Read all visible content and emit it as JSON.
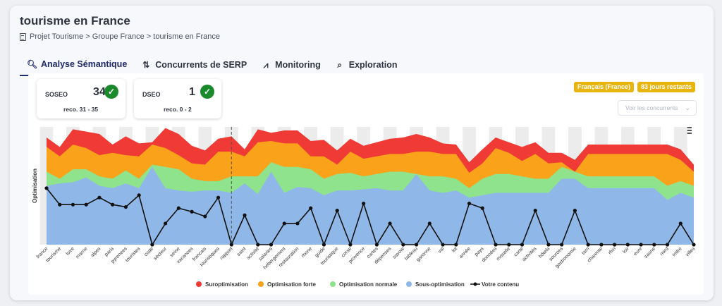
{
  "page": {
    "title": "tourisme en France"
  },
  "breadcrumb": {
    "text": "Projet Tourisme  >  Groupe France  >  tourisme en France"
  },
  "tabs": [
    {
      "label": "Analyse Sémantique",
      "icon": "search-chart-icon"
    },
    {
      "label": "Concurrents de SERP",
      "icon": "compare-icon"
    },
    {
      "label": "Monitoring",
      "icon": "pulse-icon"
    },
    {
      "label": "Exploration",
      "icon": "search-icon"
    }
  ],
  "scores": [
    {
      "label": "SOSEO",
      "value": "34",
      "reco": "reco. 31 - 35"
    },
    {
      "label": "DSEO",
      "value": "1",
      "reco": "reco. 0 - 2"
    }
  ],
  "badges": {
    "language": "Français (France)",
    "days": "83 jours restants"
  },
  "competitors_button": "Voir les concurrents",
  "colors": {
    "suroptimisation": "#ef3a36",
    "forte": "#f9a21a",
    "normale": "#8fe38c",
    "sous": "#8fb8e8",
    "contenu": "#111111",
    "check": "#1b8a2c",
    "badge": "#e8b40e"
  },
  "chart_data": {
    "type": "area",
    "ylabel": "Optimisation",
    "ylim": [
      0,
      100
    ],
    "grid": "alternating vertical bands",
    "legend_position": "bottom",
    "marker_after_index": 13,
    "categories": [
      "france",
      "tourisme",
      "loire",
      "marne",
      "alpes",
      "paris",
      "pyrenees",
      "touristes",
      "code",
      "secteur",
      "seine",
      "vacances",
      "francais",
      "touristiques",
      "rapport",
      "saint",
      "activité",
      "salaries",
      "hebergement",
      "restauration",
      "rhone",
      "guide",
      "touristique",
      "corse",
      "provence",
      "cartes",
      "dépenses",
      "savoie",
      "tableau",
      "garonne",
      "val",
      "lot",
      "année",
      "pays",
      "données",
      "moselle",
      "carte",
      "activités",
      "hôtels",
      "sources",
      "gastronomie",
      "tarn",
      "charente",
      "rhin",
      "loir",
      "eure",
      "saone",
      "nord",
      "indre",
      "villes"
    ],
    "series": [
      {
        "name": "Sous-optimisation",
        "values": [
          50,
          52,
          53,
          57,
          50,
          48,
          52,
          48,
          66,
          48,
          46,
          45,
          46,
          46,
          44,
          52,
          43,
          62,
          44,
          49,
          48,
          42,
          46,
          46,
          47,
          48,
          46,
          46,
          60,
          46,
          44,
          46,
          40,
          42,
          44,
          44,
          44,
          44,
          44,
          56,
          56,
          48,
          48,
          48,
          48,
          48,
          48,
          38,
          44,
          40
        ]
      },
      {
        "name": "Optimisation normale",
        "values": [
          62,
          56,
          64,
          64,
          58,
          56,
          63,
          56,
          68,
          66,
          64,
          56,
          54,
          54,
          58,
          58,
          58,
          70,
          66,
          66,
          64,
          56,
          60,
          61,
          58,
          60,
          62,
          62,
          60,
          58,
          58,
          56,
          48,
          56,
          60,
          60,
          58,
          56,
          56,
          66,
          62,
          58,
          58,
          58,
          58,
          58,
          58,
          50,
          54,
          50
        ]
      },
      {
        "name": "Optimisation forte",
        "values": [
          83,
          75,
          85,
          82,
          76,
          78,
          76,
          75,
          85,
          82,
          76,
          69,
          68,
          79,
          79,
          75,
          87,
          88,
          86,
          86,
          75,
          75,
          68,
          79,
          73,
          75,
          77,
          77,
          79,
          79,
          77,
          77,
          61,
          69,
          82,
          78,
          71,
          77,
          69,
          70,
          62,
          77,
          77,
          77,
          77,
          77,
          77,
          77,
          72,
          62
        ]
      },
      {
        "name": "Suroptimisation",
        "values": [
          91,
          83,
          98,
          96,
          94,
          85,
          92,
          86,
          87,
          99,
          94,
          84,
          80,
          90,
          92,
          81,
          98,
          95,
          97,
          97,
          88,
          89,
          80,
          90,
          84,
          87,
          90,
          91,
          94,
          91,
          86,
          85,
          70,
          81,
          91,
          87,
          83,
          87,
          78,
          78,
          72,
          85,
          85,
          85,
          85,
          85,
          85,
          85,
          81,
          68
        ]
      },
      {
        "name": "Votre contenu",
        "values": [
          48,
          34,
          34,
          34,
          40,
          34,
          32,
          42,
          0,
          18,
          31,
          28,
          24,
          40,
          0,
          25,
          0,
          0,
          18,
          18,
          31,
          0,
          29,
          0,
          35,
          0,
          18,
          0,
          0,
          18,
          0,
          0,
          35,
          31,
          0,
          0,
          0,
          29,
          0,
          0,
          29,
          0,
          0,
          0,
          0,
          0,
          0,
          0,
          18,
          0
        ]
      }
    ]
  }
}
